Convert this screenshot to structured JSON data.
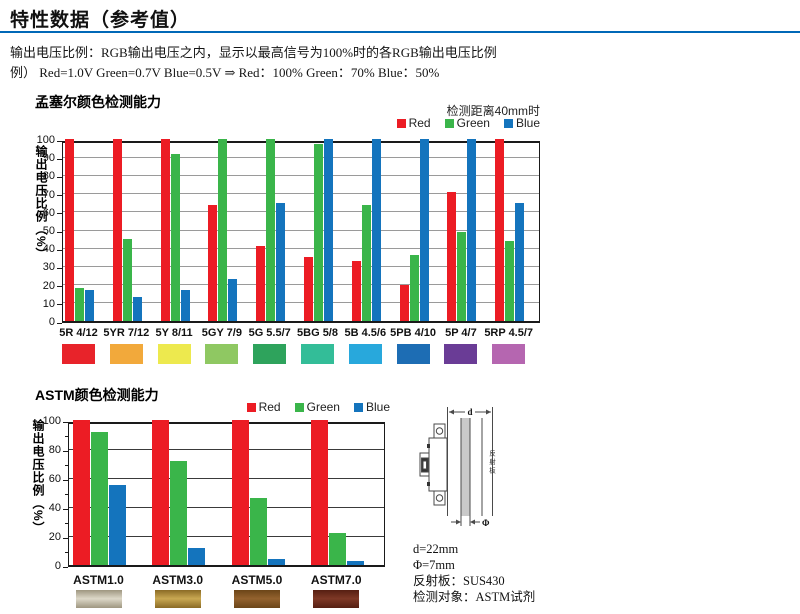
{
  "page": {
    "title": "特性数据（参考值）",
    "intro_line1": "输出电压比例：RGB输出电压之内，显示以最高信号为100%时的各RGB输出电压比例",
    "intro_line2": "例） Red=1.0V Green=0.7V Blue=0.5V ⇒ Red：100% Green：70% Blue：50%"
  },
  "colors": {
    "title_rule": "#0068B7",
    "bar_red": "#EC1C24",
    "bar_green": "#3AB54A",
    "bar_blue": "#1474BD",
    "grid_light": "#9a9a9a",
    "grid_dark": "#3a3a3a"
  },
  "chart_data": [
    {
      "type": "bar",
      "title": "孟塞尔颜色检测能力",
      "note": "检测距离40mm时",
      "ylabel": "输出电压比例（%）",
      "ylim": [
        0,
        100
      ],
      "ytick_step": 10,
      "grid": "on",
      "legend_position": "top-right",
      "categories": [
        "5R 4/12",
        "5YR 7/12",
        "5Y 8/11",
        "5GY 7/9",
        "5G 5.5/7",
        "5BG 5/8",
        "5B 4.5/6",
        "5PB 4/10",
        "5P 4/7",
        "5RP 4.5/7"
      ],
      "series": [
        {
          "name": "Red",
          "color": "#EC1C24",
          "values": [
            100,
            100,
            100,
            64,
            41,
            35,
            33,
            20,
            71,
            100
          ]
        },
        {
          "name": "Green",
          "color": "#3AB54A",
          "values": [
            18,
            45,
            92,
            100,
            100,
            97,
            64,
            36,
            49,
            44
          ]
        },
        {
          "name": "Blue",
          "color": "#1474BD",
          "values": [
            17,
            13,
            17,
            23,
            65,
            100,
            100,
            100,
            100,
            65
          ]
        }
      ],
      "category_swatches": [
        "#E8232A",
        "#F2A93B",
        "#EDE94E",
        "#8FC862",
        "#2EA35C",
        "#33BD98",
        "#28A8DC",
        "#1D6DB4",
        "#6A3C96",
        "#B566B0"
      ]
    },
    {
      "type": "bar",
      "title": "ASTM颜色检测能力",
      "ylabel": "输出电压比例（%）",
      "ylim": [
        0,
        100
      ],
      "ytick_step": 20,
      "grid": "on",
      "legend_position": "top-right",
      "categories": [
        "ASTM1.0",
        "ASTM3.0",
        "ASTM5.0",
        "ASTM7.0"
      ],
      "series": [
        {
          "name": "Red",
          "color": "#EC1C24",
          "values": [
            100,
            100,
            100,
            100
          ]
        },
        {
          "name": "Green",
          "color": "#3AB54A",
          "values": [
            92,
            72,
            46,
            22
          ]
        },
        {
          "name": "Blue",
          "color": "#1474BD",
          "values": [
            55,
            12,
            4,
            3
          ]
        }
      ],
      "category_swatch_gradients": [
        {
          "edge": "#9E9680",
          "center": "#DDD8C8"
        },
        {
          "edge": "#8A6A25",
          "center": "#C9A852"
        },
        {
          "edge": "#6B4518",
          "center": "#93622E"
        },
        {
          "edge": "#561F12",
          "center": "#7E3826"
        }
      ]
    }
  ],
  "diagram": {
    "dim_d_label": "d",
    "dim_phi_label": "Φ",
    "reflector_label": "反射板",
    "notes": {
      "line1": "d=22mm",
      "line2": "Φ=7mm",
      "line3": "反射板：SUS430",
      "line4": "检测对象：ASTM试剂"
    }
  }
}
